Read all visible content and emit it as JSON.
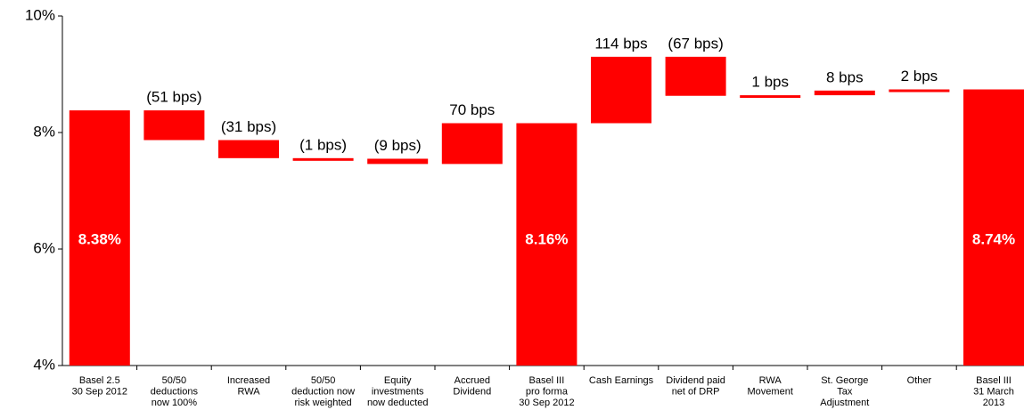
{
  "chart_data": {
    "type": "waterfall",
    "categories": [
      [
        "Basel 2.5",
        "30 Sep 2012"
      ],
      [
        "50/50",
        "deductions",
        "now 100%"
      ],
      [
        "Increased",
        "RWA"
      ],
      [
        "50/50",
        "deduction now",
        "risk weighted"
      ],
      [
        "Equity",
        "investments",
        "now deducted"
      ],
      [
        "Accrued",
        "Dividend"
      ],
      [
        "Basel III",
        "pro forma",
        "30 Sep 2012"
      ],
      [
        "Cash Earnings"
      ],
      [
        "Dividend paid",
        "net of DRP"
      ],
      [
        "RWA",
        "Movement"
      ],
      [
        "St. George",
        "Tax",
        "Adjustment"
      ],
      [
        "Other"
      ],
      [
        "Basel III",
        "31 March",
        "2013"
      ]
    ],
    "values": [
      8.38,
      -0.51,
      -0.31,
      -0.01,
      -0.09,
      0.7,
      8.16,
      1.14,
      -0.67,
      0.01,
      0.08,
      0.02,
      8.74
    ],
    "value_labels": [
      "8.38%",
      "(51 bps)",
      "(31 bps)",
      "(1 bps)",
      "(9 bps)",
      "70 bps",
      "8.16%",
      "114 bps",
      "(67 bps)",
      "1 bps",
      "8 bps",
      "2 bps",
      "8.74%"
    ],
    "totals": [
      true,
      false,
      false,
      false,
      false,
      false,
      true,
      false,
      false,
      false,
      false,
      false,
      true
    ],
    "color": "#ff0000",
    "ylim": [
      4,
      10
    ],
    "yticks": [
      {
        "value": 4,
        "label": "4%"
      },
      {
        "value": 6,
        "label": "6%"
      },
      {
        "value": 8,
        "label": "8%"
      },
      {
        "value": 10,
        "label": "10%"
      }
    ]
  }
}
